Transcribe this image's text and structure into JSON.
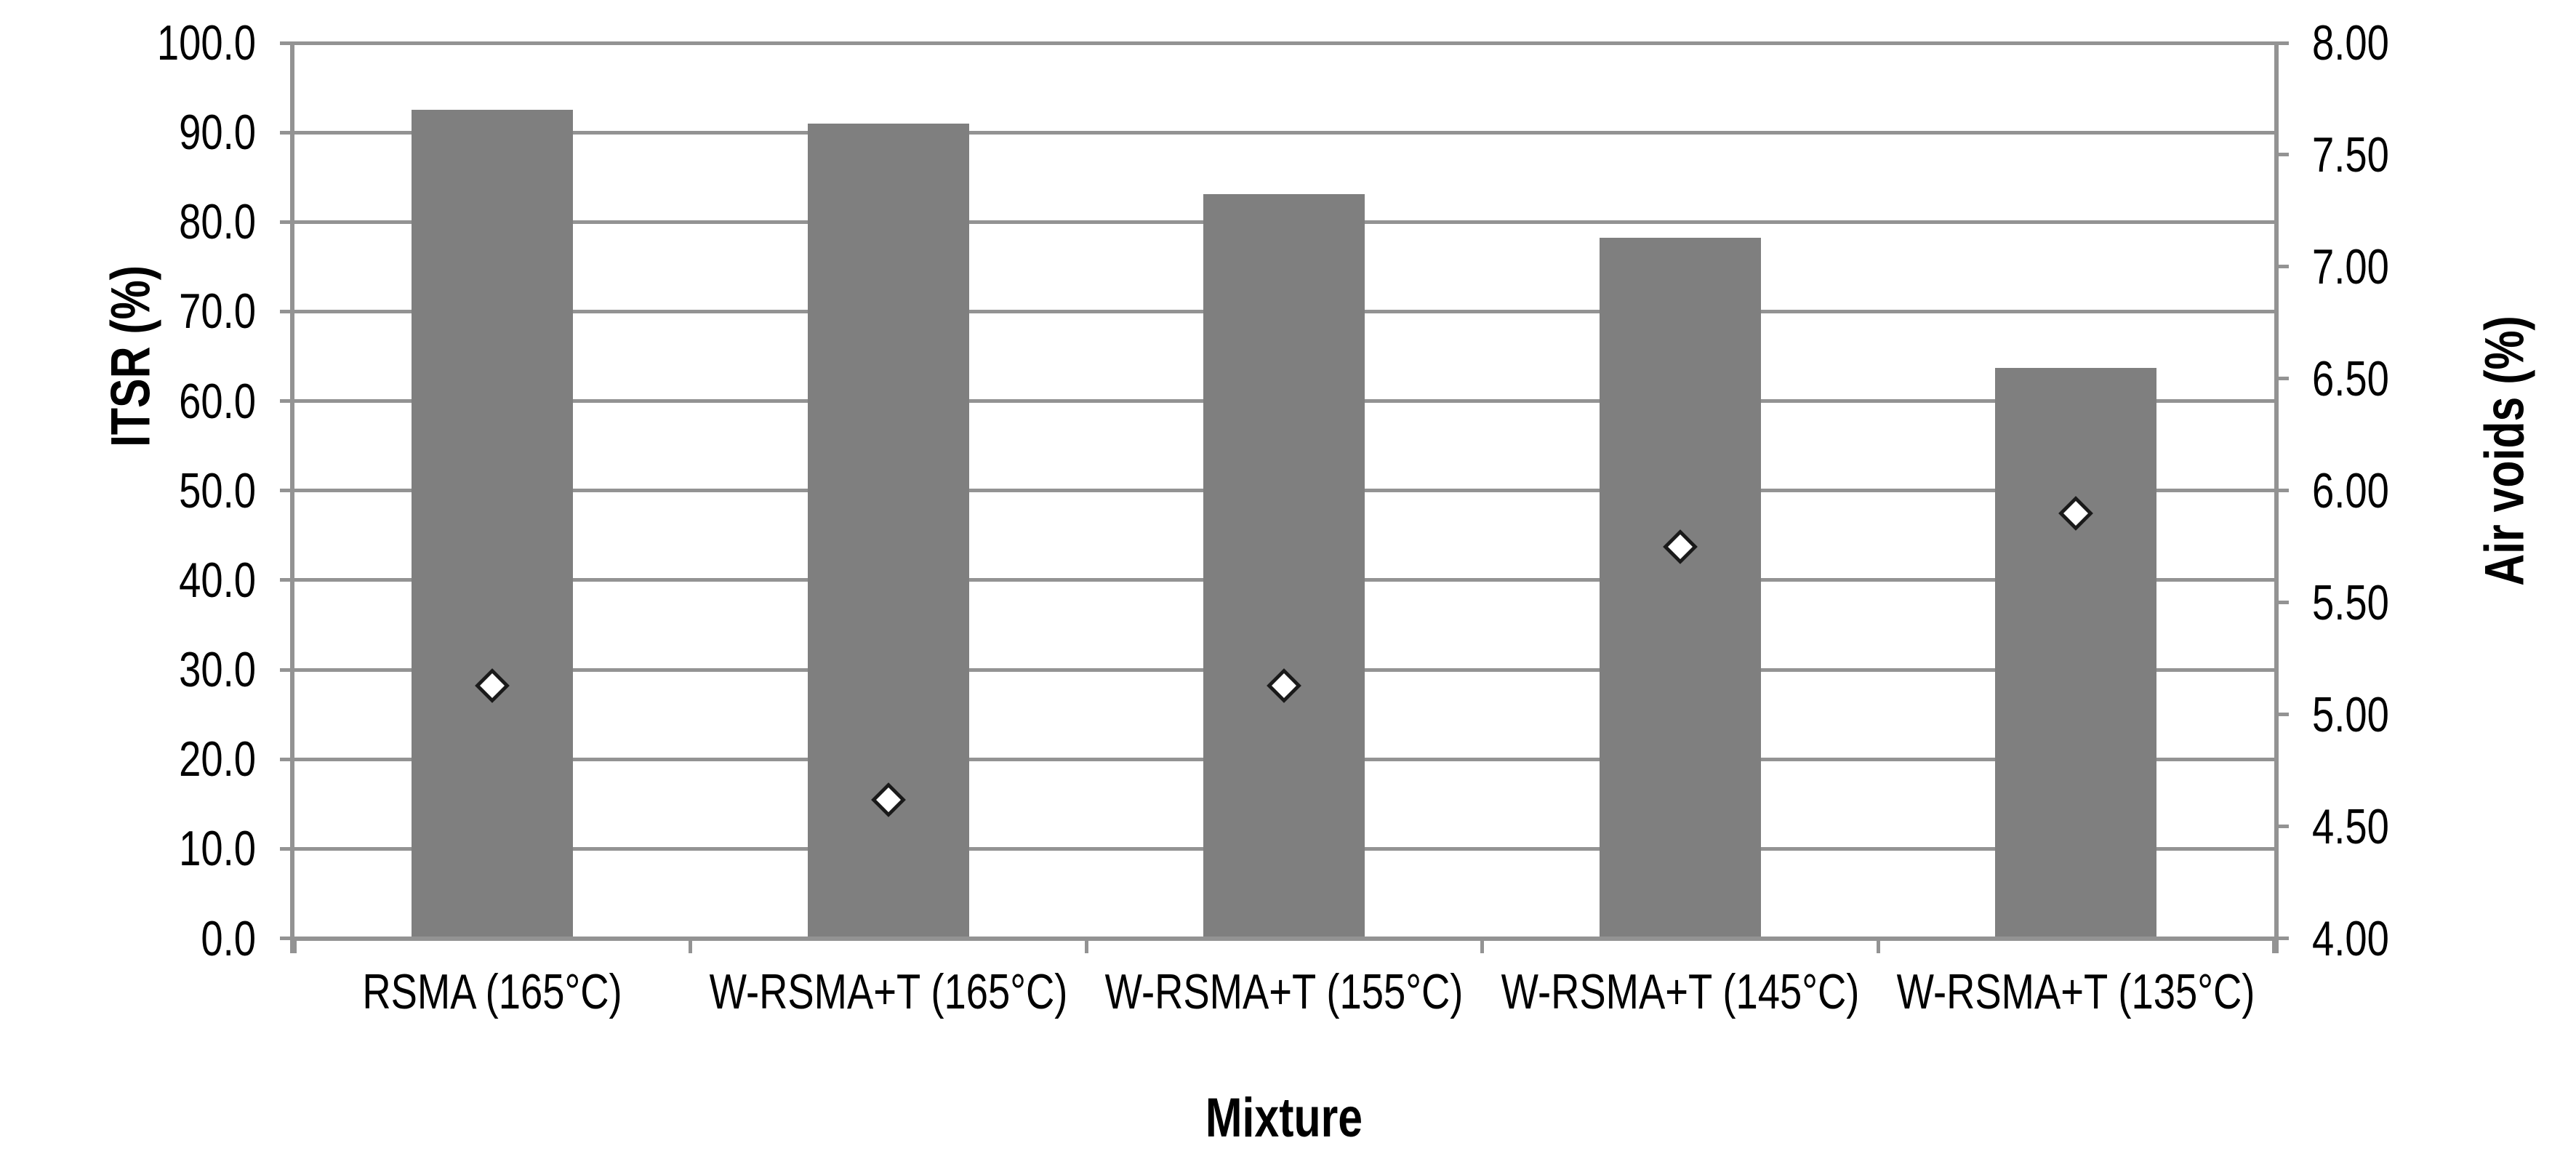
{
  "chart_data": {
    "type": "bar",
    "title": "",
    "xlabel": "Mixture",
    "categories": [
      "RSMA (165°C)",
      "W-RSMA+T (165°C)",
      "W-RSMA+T (155°C)",
      "W-RSMA+T (145°C)",
      "W-RSMA+T (135°C)"
    ],
    "series": [
      {
        "name": "ITSR",
        "type": "bar",
        "axis": "left",
        "values": [
          92.5,
          91.0,
          83.1,
          78.2,
          63.7
        ]
      },
      {
        "name": "Air voids",
        "type": "scatter",
        "marker": "diamond",
        "axis": "right",
        "values": [
          5.13,
          4.62,
          5.13,
          5.75,
          5.9
        ]
      }
    ],
    "left_axis": {
      "label": "ITSR (%)",
      "min": 0,
      "max": 100,
      "step": 10,
      "ticks": [
        "0.0",
        "10.0",
        "20.0",
        "30.0",
        "40.0",
        "50.0",
        "60.0",
        "70.0",
        "80.0",
        "90.0",
        "100.0"
      ]
    },
    "right_axis": {
      "label": "Air voids (%)",
      "min": 4,
      "max": 8,
      "step": 0.5,
      "ticks": [
        "4.00",
        "4.50",
        "5.00",
        "5.50",
        "6.00",
        "6.50",
        "7.00",
        "7.50",
        "8.00"
      ]
    },
    "grid": true,
    "legend": "none",
    "colors": {
      "bar": "#7f7f7f",
      "gridline": "#939393",
      "axis_line": "#939393",
      "marker_fill": "#ffffff",
      "marker_border": "#1a1a1a",
      "text": "#000000",
      "background": "#ffffff"
    }
  }
}
